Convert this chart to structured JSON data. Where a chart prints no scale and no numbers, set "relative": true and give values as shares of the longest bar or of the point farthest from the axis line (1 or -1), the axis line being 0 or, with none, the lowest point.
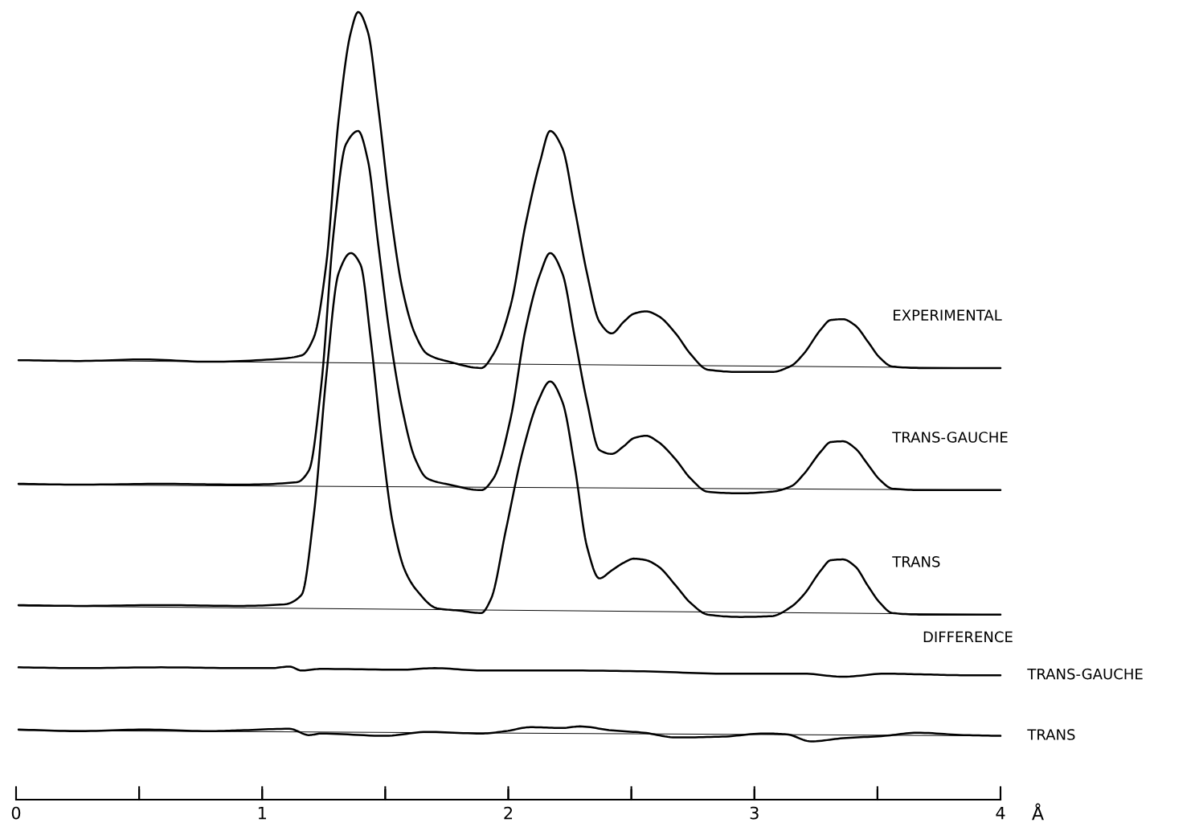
{
  "chart_data": {
    "type": "line",
    "relative": true,
    "xlabel": "Å",
    "xlim": [
      0,
      4
    ],
    "xticks": [
      0,
      {
        "value": 0.5,
        "label": null
      },
      1,
      {
        "value": 1.5,
        "label": null
      },
      2,
      {
        "value": 2.5,
        "label": null
      },
      3,
      {
        "value": 3.5,
        "label": null
      },
      4
    ],
    "tick_labels": "x",
    "grid": false,
    "legend": false,
    "marker": "none",
    "line_style": "solid",
    "annotations": [
      "DIFFERENCE"
    ],
    "series": [
      {
        "name": "EXPERIMENTAL",
        "color": "#000000",
        "x": [
          0.01,
          0.26,
          0.52,
          0.78,
          1.04,
          1.16,
          1.21,
          1.26,
          1.31,
          1.36,
          1.39,
          1.43,
          1.47,
          1.52,
          1.57,
          1.62,
          1.67,
          1.76,
          1.89,
          1.94,
          2.01,
          2.07,
          2.13,
          2.17,
          2.22,
          2.27,
          2.32,
          2.37,
          2.42,
          2.47,
          2.51,
          2.56,
          2.61,
          2.68,
          2.74,
          2.81,
          2.94,
          3.07,
          3.15,
          3.2,
          3.27,
          3.31,
          3.36,
          3.41,
          3.46,
          3.51,
          3.56,
          3.69,
          4.0
        ],
        "values": [
          0.558,
          0.557,
          0.559,
          0.556,
          0.559,
          0.564,
          0.587,
          0.679,
          0.862,
          0.974,
          1.0,
          0.974,
          0.883,
          0.75,
          0.648,
          0.592,
          0.566,
          0.556,
          0.548,
          0.566,
          0.628,
          0.73,
          0.811,
          0.849,
          0.827,
          0.75,
          0.668,
          0.607,
          0.592,
          0.607,
          0.617,
          0.62,
          0.614,
          0.592,
          0.566,
          0.546,
          0.543,
          0.543,
          0.551,
          0.566,
          0.597,
          0.609,
          0.61,
          0.602,
          0.582,
          0.561,
          0.55,
          0.548,
          0.548
        ]
      },
      {
        "name": "TRANS-GAUCHE",
        "color": "#000000",
        "x": [
          0.01,
          0.26,
          0.59,
          0.91,
          1.14,
          1.19,
          1.24,
          1.29,
          1.34,
          1.39,
          1.43,
          1.47,
          1.52,
          1.57,
          1.62,
          1.67,
          1.76,
          1.89,
          1.94,
          2.01,
          2.07,
          2.13,
          2.17,
          2.22,
          2.27,
          2.32,
          2.37,
          2.42,
          2.47,
          2.51,
          2.56,
          2.61,
          2.68,
          2.74,
          2.81,
          2.94,
          3.07,
          3.15,
          3.2,
          3.27,
          3.31,
          3.36,
          3.41,
          3.46,
          3.51,
          3.56,
          3.69,
          4.0
        ],
        "values": [
          0.401,
          0.4,
          0.401,
          0.4,
          0.403,
          0.418,
          0.526,
          0.719,
          0.832,
          0.849,
          0.811,
          0.709,
          0.587,
          0.495,
          0.434,
          0.408,
          0.4,
          0.393,
          0.408,
          0.485,
          0.597,
          0.668,
          0.694,
          0.668,
          0.587,
          0.505,
          0.444,
          0.439,
          0.449,
          0.459,
          0.462,
          0.454,
          0.432,
          0.408,
          0.391,
          0.389,
          0.391,
          0.398,
          0.413,
          0.442,
          0.454,
          0.455,
          0.446,
          0.426,
          0.406,
          0.395,
          0.393,
          0.393
        ]
      },
      {
        "name": "TRANS",
        "color": "#000000",
        "x": [
          0.01,
          0.26,
          0.59,
          0.91,
          1.09,
          1.16,
          1.21,
          1.26,
          1.31,
          1.36,
          1.4,
          1.44,
          1.49,
          1.53,
          1.58,
          1.63,
          1.71,
          1.8,
          1.89,
          1.93,
          1.99,
          2.06,
          2.12,
          2.17,
          2.22,
          2.27,
          2.32,
          2.37,
          2.42,
          2.47,
          2.51,
          2.56,
          2.61,
          2.68,
          2.74,
          2.81,
          2.94,
          3.07,
          3.15,
          3.2,
          3.27,
          3.31,
          3.36,
          3.41,
          3.46,
          3.51,
          3.56,
          3.69,
          4.0
        ],
        "values": [
          0.247,
          0.246,
          0.247,
          0.246,
          0.248,
          0.26,
          0.362,
          0.536,
          0.668,
          0.694,
          0.679,
          0.587,
          0.444,
          0.352,
          0.291,
          0.265,
          0.243,
          0.24,
          0.237,
          0.255,
          0.342,
          0.444,
          0.505,
          0.531,
          0.505,
          0.423,
          0.321,
          0.281,
          0.291,
          0.301,
          0.306,
          0.304,
          0.296,
          0.272,
          0.25,
          0.235,
          0.232,
          0.233,
          0.245,
          0.26,
          0.291,
          0.304,
          0.305,
          0.296,
          0.272,
          0.25,
          0.237,
          0.235,
          0.235
        ]
      },
      {
        "name": "TRANS-GAUCHE",
        "color": "#000000",
        "x": [
          0.01,
          0.26,
          0.59,
          0.91,
          1.04,
          1.11,
          1.16,
          1.24,
          1.57,
          1.7,
          1.89,
          2.22,
          2.55,
          2.87,
          3.2,
          3.36,
          3.53,
          3.69,
          3.85,
          4.0
        ],
        "values": [
          0.168,
          0.167,
          0.168,
          0.167,
          0.167,
          0.169,
          0.164,
          0.166,
          0.165,
          0.167,
          0.164,
          0.164,
          0.163,
          0.16,
          0.16,
          0.156,
          0.16,
          0.159,
          0.158,
          0.158
        ]
      },
      {
        "name": "TRANS",
        "color": "#000000",
        "x": [
          0.01,
          0.26,
          0.52,
          0.78,
          0.91,
          1.11,
          1.19,
          1.24,
          1.5,
          1.67,
          1.89,
          1.99,
          2.09,
          2.22,
          2.29,
          2.42,
          2.55,
          2.68,
          2.87,
          3.04,
          3.13,
          3.23,
          3.36,
          3.53,
          3.66,
          3.85,
          4.0
        ],
        "values": [
          0.089,
          0.087,
          0.089,
          0.087,
          0.088,
          0.09,
          0.082,
          0.084,
          0.081,
          0.086,
          0.084,
          0.087,
          0.092,
          0.091,
          0.093,
          0.088,
          0.085,
          0.079,
          0.08,
          0.084,
          0.083,
          0.074,
          0.078,
          0.081,
          0.085,
          0.082,
          0.081
        ]
      },
      {
        "color": "#000000",
        "x": [
          0.01,
          4.0
        ],
        "values": [
          0.558,
          0.548
        ]
      },
      {
        "color": "#000000",
        "x": [
          0.01,
          4.0
        ],
        "values": [
          0.4,
          0.393
        ]
      },
      {
        "color": "#000000",
        "x": [
          0.01,
          4.0
        ],
        "values": [
          0.246,
          0.235
        ]
      },
      {
        "color": "#000000",
        "x": [
          0.01,
          4.0
        ],
        "values": [
          0.088,
          0.081
        ]
      }
    ]
  }
}
